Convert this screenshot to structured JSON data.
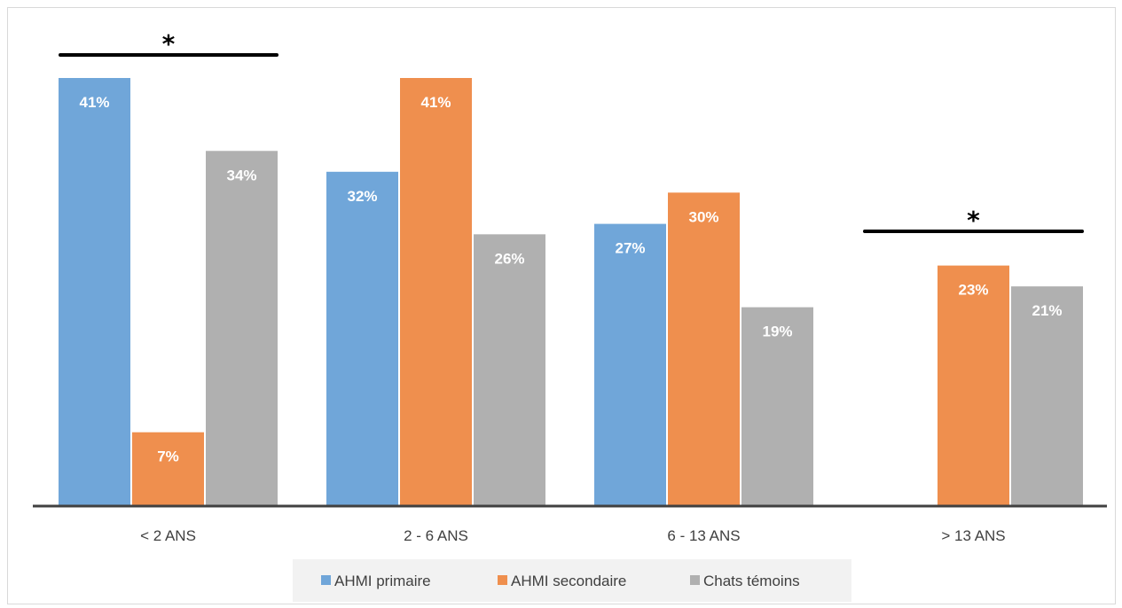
{
  "chart_data": {
    "type": "bar",
    "categories": [
      "< 2 ANS",
      "2 - 6 ANS",
      "6 - 13 ANS",
      "> 13 ANS"
    ],
    "series": [
      {
        "name": "AHMI primaire",
        "values": [
          41,
          32,
          27,
          null
        ],
        "labels": [
          "41%",
          "32%",
          "27%",
          ""
        ],
        "color": "#70a6d9"
      },
      {
        "name": "AHMI secondaire",
        "values": [
          7,
          41,
          30,
          23
        ],
        "labels": [
          "7%",
          "41%",
          "30%",
          "23%"
        ],
        "color": "#ef8f4e"
      },
      {
        "name": "Chats témoins",
        "values": [
          34,
          26,
          19,
          21
        ],
        "labels": [
          "34%",
          "26%",
          "19%",
          "21%"
        ],
        "color": "#b0b0b0"
      }
    ],
    "ylim": [
      0,
      41
    ],
    "grid": false,
    "legend": "bottom",
    "annotations": [
      {
        "text": "*",
        "category": "< 2 ANS"
      },
      {
        "text": "*",
        "category": "> 13 ANS"
      }
    ]
  }
}
